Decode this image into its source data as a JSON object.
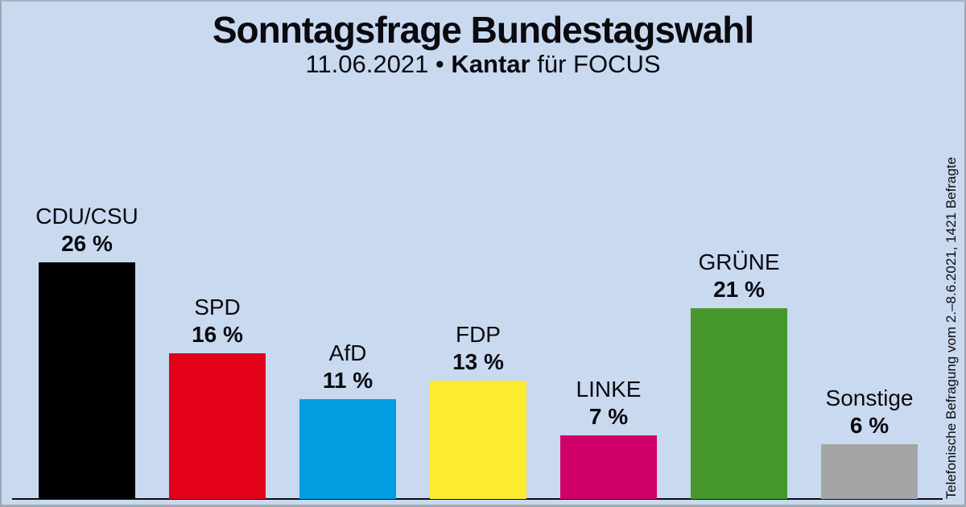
{
  "title": "Sonntagsfrage Bundestagswahl",
  "subtitle": {
    "prefix": "11.06.2021 • ",
    "institute": "Kantar",
    "suffix": " für FOCUS"
  },
  "side_note": "Telefonische Befragung vom 2.–8.6.2021, 1421 Befragte",
  "chart_data": {
    "type": "bar",
    "title": "Sonntagsfrage Bundestagswahl",
    "subtitle": "11.06.2021 • Kantar für FOCUS",
    "categories": [
      "CDU/CSU",
      "SPD",
      "AfD",
      "FDP",
      "LINKE",
      "GRÜNE",
      "Sonstige"
    ],
    "values": [
      26,
      16,
      11,
      13,
      7,
      21,
      6
    ],
    "value_labels": [
      "26 %",
      "16 %",
      "11 %",
      "13 %",
      "7 %",
      "21 %",
      "6 %"
    ],
    "colors": [
      "#000000",
      "#e3001b",
      "#009ee0",
      "#fbec30",
      "#d00069",
      "#46982c",
      "#a5a5a5"
    ],
    "unit": "%",
    "ylim": [
      0,
      28
    ],
    "grid": false,
    "legend": "none",
    "xlabel": "",
    "ylabel": "",
    "background": "#c9d9f0",
    "source_note": "Telefonische Befragung vom 2.–8.6.2021, 1421 Befragte"
  }
}
